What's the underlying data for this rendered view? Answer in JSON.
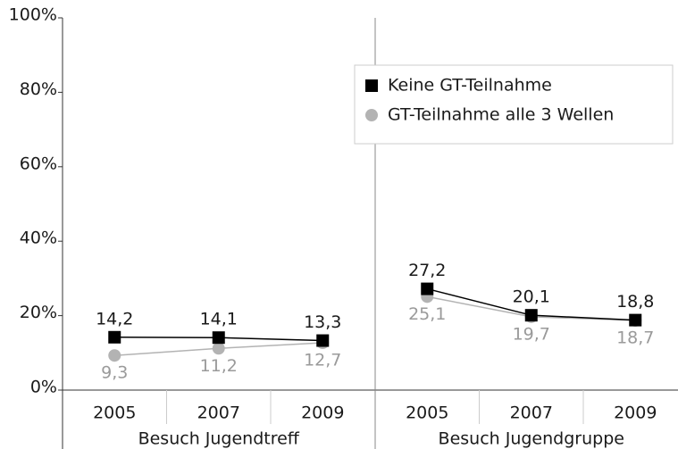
{
  "chart_data": {
    "type": "line",
    "ylim": [
      0,
      100
    ],
    "yticks": [
      {
        "value": 0,
        "label": "0%"
      },
      {
        "value": 20,
        "label": "20%"
      },
      {
        "value": 40,
        "label": "40%"
      },
      {
        "value": 60,
        "label": "60%"
      },
      {
        "value": 80,
        "label": "80%"
      },
      {
        "value": 100,
        "label": "100%"
      }
    ],
    "series": [
      {
        "name": "Keine GT-Teilnahme",
        "color": "#000000",
        "marker": "square"
      },
      {
        "name": "GT-Teilnahme alle 3 Wellen",
        "color": "#b3b3b3",
        "marker": "circle"
      }
    ],
    "panels": [
      {
        "label": "Besuch Jugendtreff",
        "categories": [
          "2005",
          "2007",
          "2009"
        ],
        "series": [
          {
            "values": [
              14.2,
              14.1,
              13.3
            ],
            "value_labels": [
              "14,2",
              "14,1",
              "13,3"
            ]
          },
          {
            "values": [
              9.3,
              11.2,
              12.7
            ],
            "value_labels": [
              "9,3",
              "11,2",
              "12,7"
            ]
          }
        ]
      },
      {
        "label": "Besuch Jugendgruppe",
        "categories": [
          "2005",
          "2007",
          "2009"
        ],
        "series": [
          {
            "values": [
              27.2,
              20.1,
              18.8
            ],
            "value_labels": [
              "27,2",
              "20,1",
              "18,8"
            ]
          },
          {
            "values": [
              25.1,
              19.7,
              18.7
            ],
            "value_labels": [
              "25,1",
              "19,7",
              "18,7"
            ]
          }
        ]
      }
    ],
    "legend": "upper right"
  }
}
